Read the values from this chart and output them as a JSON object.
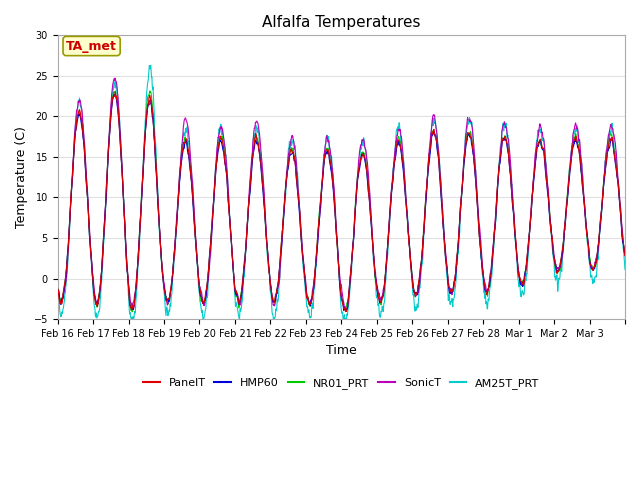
{
  "title": "Alfalfa Temperatures",
  "xlabel": "Time",
  "ylabel": "Temperature (C)",
  "ylim": [
    -5,
    30
  ],
  "n_days": 16,
  "series_colors": {
    "PanelT": "#dd0000",
    "HMP60": "#0000dd",
    "NR01_PRT": "#00cc00",
    "SonicT": "#bb00bb",
    "AM25T_PRT": "#00cccc"
  },
  "annotation_text": "TA_met",
  "annotation_color": "#cc0000",
  "annotation_bg": "#ffffcc",
  "annotation_edge": "#999900",
  "background_color": "#ffffff",
  "plot_bg": "#ffffff",
  "grid_color": "#e0e0e0",
  "tick_labels": [
    "Feb 16",
    "Feb 17",
    "Feb 18",
    "Feb 19",
    "Feb 20",
    "Feb 21",
    "Feb 22",
    "Feb 23",
    "Feb 24",
    "Feb 25",
    "Feb 26",
    "Feb 27",
    "Feb 28",
    "Mar 1",
    "Mar 2",
    "Mar 3"
  ],
  "title_fontsize": 11,
  "axis_fontsize": 9,
  "tick_fontsize": 7,
  "legend_fontsize": 8,
  "linewidth": 0.8,
  "figsize": [
    6.4,
    4.8
  ],
  "dpi": 100
}
